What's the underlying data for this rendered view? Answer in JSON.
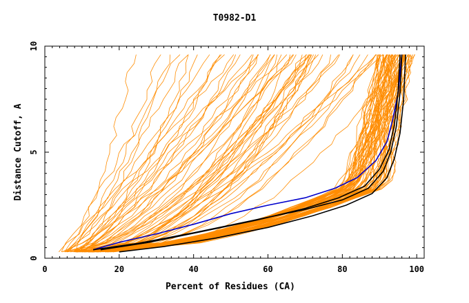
{
  "chart_data": {
    "type": "line",
    "title": "T0982-D1",
    "xlabel": "Percent of Residues (CA)",
    "ylabel": "Distance Cutoff, A",
    "xlim": [
      0,
      102
    ],
    "ylim": [
      0,
      10
    ],
    "x_ticks": [
      "0",
      "20",
      "40",
      "60",
      "80",
      "100"
    ],
    "y_ticks": [
      "0",
      "5",
      "10"
    ],
    "grid": false,
    "legend": "none",
    "colors": {
      "other_models": "#ff8c00",
      "highlight_blue": "#0000cc",
      "highlight_black": "#000000",
      "axis": "#000000"
    },
    "series": [
      {
        "color": "#0000cc",
        "x": [
          13,
          20,
          30,
          40,
          50,
          60,
          70,
          78,
          84,
          89,
          92,
          93.5,
          95,
          96
        ],
        "y": [
          0.4,
          0.75,
          1.15,
          1.6,
          2.1,
          2.5,
          2.85,
          3.3,
          3.8,
          4.6,
          5.5,
          6.5,
          7.8,
          9.6
        ]
      },
      {
        "color": "#000000",
        "x": [
          13,
          25,
          40,
          55,
          70,
          80,
          87,
          91,
          93,
          94.5,
          95.5,
          96
        ],
        "y": [
          0.4,
          0.7,
          1.2,
          1.75,
          2.3,
          2.75,
          3.3,
          4.1,
          5.0,
          6.2,
          7.8,
          9.6
        ]
      },
      {
        "color": "#000000",
        "x": [
          15,
          28,
          42,
          57,
          70,
          79,
          86,
          90,
          92.5,
          94,
          95,
          95.5
        ],
        "y": [
          0.4,
          0.75,
          1.25,
          1.8,
          2.35,
          2.85,
          3.4,
          4.2,
          5.1,
          6.3,
          7.9,
          9.6
        ]
      },
      {
        "color": "#000000",
        "x": [
          20,
          32,
          46,
          60,
          72,
          81,
          88,
          92,
          94,
          95.5,
          96.5,
          97
        ],
        "y": [
          0.3,
          0.55,
          0.95,
          1.45,
          2.0,
          2.5,
          3.05,
          3.8,
          4.7,
          5.9,
          7.5,
          9.6
        ]
      }
    ]
  }
}
